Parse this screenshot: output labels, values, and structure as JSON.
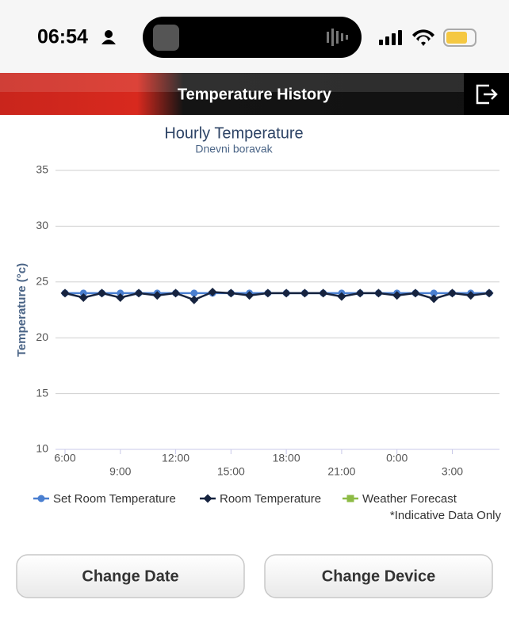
{
  "status": {
    "time": "06:54"
  },
  "header": {
    "title": "Temperature History"
  },
  "chart_data": {
    "type": "line",
    "title": "Hourly Temperature",
    "subtitle": "Dnevni boravak",
    "y_label": "Temperature (°c)",
    "categories": [
      "6:00",
      null,
      null,
      "9:00",
      null,
      null,
      "12:00",
      null,
      null,
      "15:00",
      null,
      null,
      "18:00",
      null,
      null,
      "21:00",
      null,
      null,
      "0:00",
      null,
      null,
      "3:00",
      null,
      null
    ],
    "series": [
      {
        "name": "Set Room Temperature",
        "color": "#4a7fd0",
        "marker": "circle",
        "values": [
          24,
          24,
          24,
          24,
          24,
          24,
          24,
          24,
          24,
          24,
          24,
          24,
          24,
          24,
          24,
          24,
          24,
          24,
          24,
          24,
          24,
          24,
          24,
          24
        ]
      },
      {
        "name": "Room Temperature",
        "color": "#16233f",
        "marker": "diamond",
        "values": [
          24,
          23.6,
          24,
          23.6,
          24,
          23.8,
          24,
          23.4,
          24.1,
          24,
          23.8,
          24,
          24,
          24,
          24,
          23.7,
          24,
          24,
          23.8,
          24,
          23.5,
          24,
          23.8,
          24
        ]
      },
      {
        "name": "Weather Forecast",
        "color": "#8dbb45",
        "marker": "square",
        "values": [
          null,
          null,
          null,
          null,
          null,
          null,
          null,
          null,
          null,
          null,
          null,
          null,
          null,
          null,
          null,
          null,
          null,
          null,
          null,
          null,
          null,
          null,
          null,
          null
        ]
      }
    ],
    "ylim": [
      10,
      35
    ],
    "yticks": [
      10,
      15,
      20,
      25,
      30,
      35
    ],
    "grid": true,
    "note": "*Indicative Data Only"
  },
  "buttons": [
    "Change Date",
    "Change Device"
  ]
}
